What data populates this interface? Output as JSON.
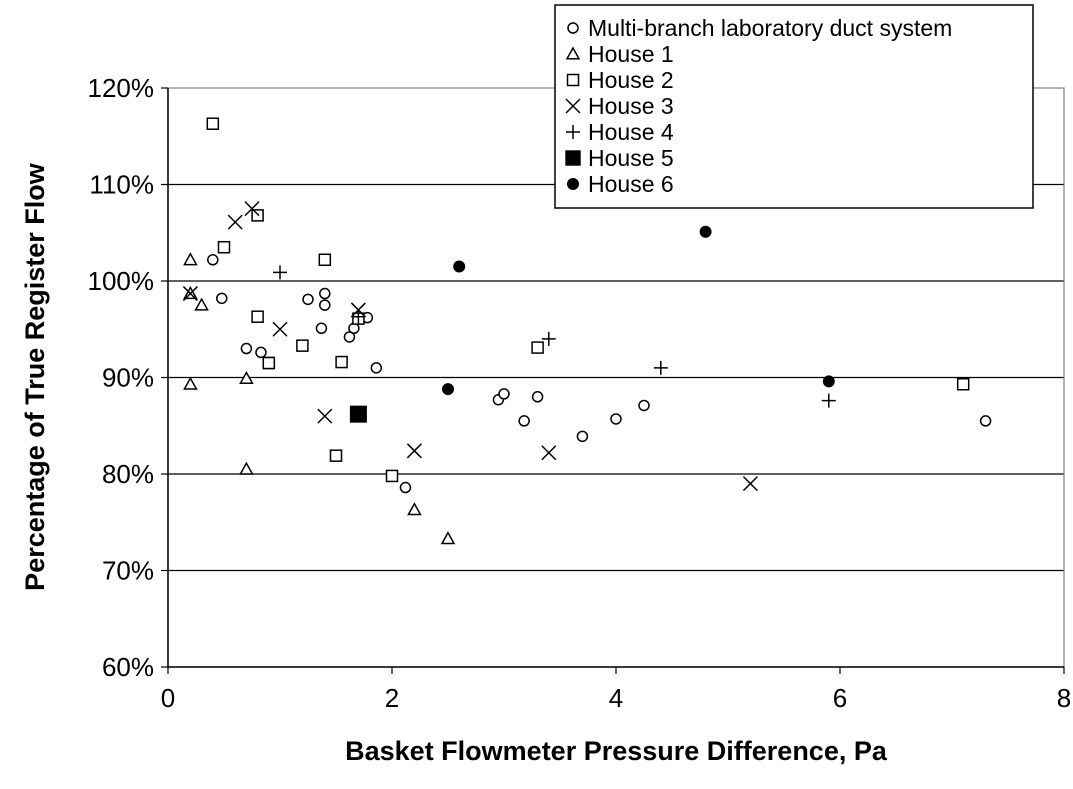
{
  "chart_data": {
    "type": "scatter",
    "title": "",
    "xlabel": "Basket Flowmeter Pressure Difference, Pa",
    "ylabel": "Percentage of True Register Flow",
    "xlim": [
      0,
      8
    ],
    "ylim": [
      60,
      120
    ],
    "x_ticks": [
      "0",
      "2",
      "4",
      "6",
      "8"
    ],
    "y_ticks": [
      "60%",
      "70%",
      "80%",
      "90%",
      "100%",
      "110%",
      "120%"
    ],
    "grid": "horizontal",
    "legend_position": "top-right",
    "series": [
      {
        "name": "Multi-branch laboratory duct system",
        "marker": "circle-open",
        "points": [
          [
            0.4,
            102.2
          ],
          [
            0.48,
            98.2
          ],
          [
            0.7,
            93.0
          ],
          [
            0.83,
            92.6
          ],
          [
            1.25,
            98.1
          ],
          [
            1.37,
            95.1
          ],
          [
            1.4,
            98.7
          ],
          [
            1.4,
            97.5
          ],
          [
            1.62,
            94.2
          ],
          [
            1.66,
            95.1
          ],
          [
            1.78,
            96.2
          ],
          [
            1.86,
            91.0
          ],
          [
            2.12,
            78.6
          ],
          [
            2.95,
            87.7
          ],
          [
            3.0,
            88.3
          ],
          [
            3.18,
            85.5
          ],
          [
            3.3,
            88.0
          ],
          [
            3.7,
            83.9
          ],
          [
            4.0,
            85.7
          ],
          [
            4.25,
            87.1
          ],
          [
            7.3,
            85.5
          ]
        ]
      },
      {
        "name": "House 1",
        "marker": "triangle-open",
        "points": [
          [
            0.2,
            102.2
          ],
          [
            0.2,
            98.7
          ],
          [
            0.2,
            89.3
          ],
          [
            0.3,
            97.5
          ],
          [
            0.7,
            89.9
          ],
          [
            0.7,
            80.5
          ],
          [
            2.2,
            76.3
          ],
          [
            2.5,
            73.3
          ]
        ]
      },
      {
        "name": "House 2",
        "marker": "square-open",
        "points": [
          [
            0.4,
            116.3
          ],
          [
            0.5,
            103.5
          ],
          [
            0.8,
            106.8
          ],
          [
            0.8,
            96.3
          ],
          [
            0.9,
            91.5
          ],
          [
            0.9,
            91.5
          ],
          [
            1.2,
            93.3
          ],
          [
            1.4,
            102.2
          ],
          [
            1.5,
            81.9
          ],
          [
            1.55,
            91.6
          ],
          [
            1.7,
            96.1
          ],
          [
            2.0,
            79.8
          ],
          [
            3.3,
            93.1
          ],
          [
            7.1,
            89.3
          ]
        ]
      },
      {
        "name": "House 3",
        "marker": "x",
        "points": [
          [
            0.2,
            98.7
          ],
          [
            0.6,
            106.1
          ],
          [
            0.75,
            107.5
          ],
          [
            1.0,
            95.0
          ],
          [
            1.4,
            86.0
          ],
          [
            1.7,
            97.0
          ],
          [
            2.2,
            82.4
          ],
          [
            3.4,
            82.2
          ],
          [
            5.2,
            79.0
          ]
        ]
      },
      {
        "name": "House 4",
        "marker": "plus",
        "points": [
          [
            1.0,
            100.9
          ],
          [
            1.7,
            96.3
          ],
          [
            3.4,
            94.0
          ],
          [
            4.4,
            91.0
          ],
          [
            5.9,
            87.6
          ]
        ]
      },
      {
        "name": "House 5",
        "marker": "square-filled",
        "points": [
          [
            1.7,
            86.2
          ]
        ]
      },
      {
        "name": "House 6",
        "marker": "circle-filled",
        "points": [
          [
            2.5,
            88.8
          ],
          [
            2.6,
            101.5
          ],
          [
            4.8,
            105.1
          ],
          [
            5.9,
            89.6
          ]
        ]
      }
    ]
  }
}
